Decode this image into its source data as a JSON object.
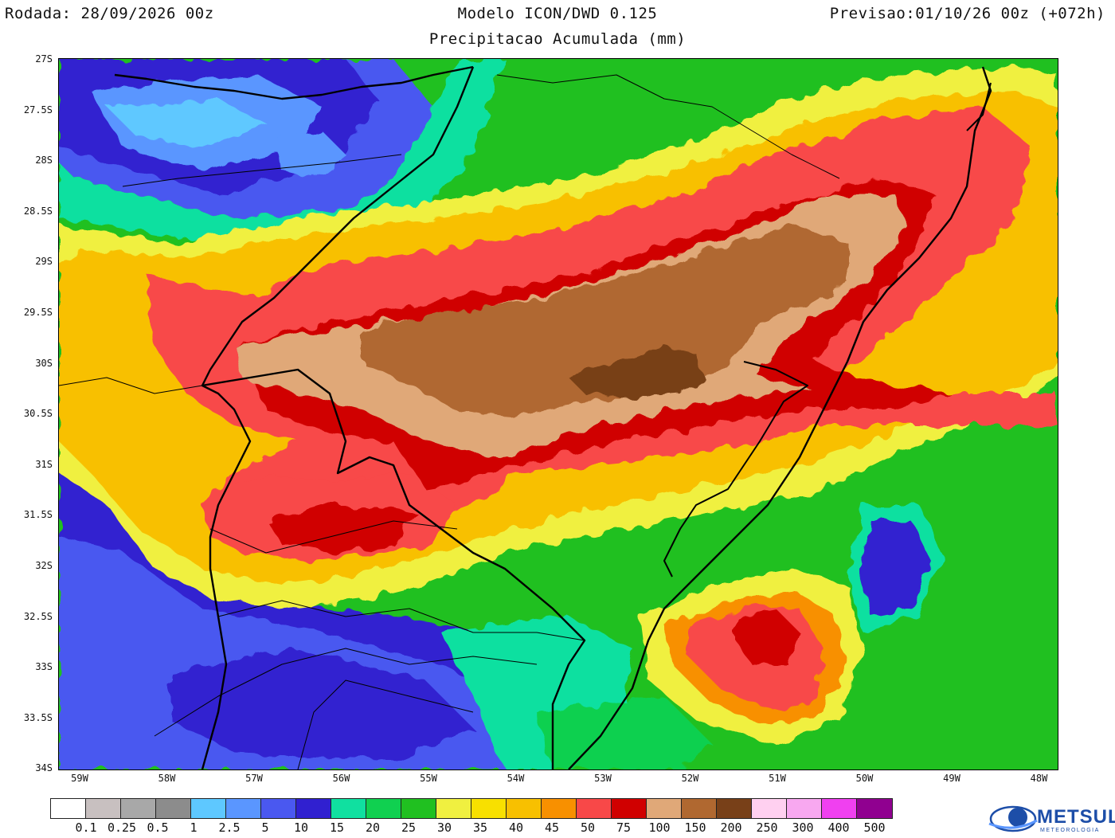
{
  "header": {
    "left": "Rodada: 28/09/2026 00z",
    "center": "Modelo ICON/DWD 0.125",
    "right": "Previsao:01/10/26 00z (+072h)",
    "subtitle": "Precipitacao Acumulada (mm)"
  },
  "map": {
    "lat_labels": [
      "27S",
      "27.5S",
      "28S",
      "28.5S",
      "29S",
      "29.5S",
      "30S",
      "30.5S",
      "31S",
      "31.5S",
      "32S",
      "32.5S",
      "33S",
      "33.5S",
      "34S"
    ],
    "lon_labels": [
      "59W",
      "58W",
      "57W",
      "56W",
      "55W",
      "54W",
      "53W",
      "52W",
      "51W",
      "50W",
      "49W",
      "48W"
    ]
  },
  "colorbar": {
    "colors": [
      "#ffffff",
      "#c8c0c0",
      "#a8a8a8",
      "#8c8c8c",
      "#5ec8ff",
      "#5a96ff",
      "#4a58f0",
      "#3020d0",
      "#10e0a0",
      "#10d050",
      "#20c020",
      "#f0f040",
      "#f8e000",
      "#f8c000",
      "#f89000",
      "#f84848",
      "#d00000",
      "#e0a878",
      "#b06830",
      "#784018",
      "#ffd0f0",
      "#f8a8f0",
      "#f040f0",
      "#900090"
    ],
    "labels": [
      "0.1",
      "0.25",
      "0.5",
      "1",
      "2.5",
      "5",
      "10",
      "15",
      "20",
      "25",
      "30",
      "35",
      "40",
      "45",
      "50",
      "75",
      "100",
      "150",
      "200",
      "250",
      "300",
      "400",
      "500"
    ]
  },
  "logo": {
    "text": "METSUL",
    "subtext": "METEOROLOGIA"
  }
}
